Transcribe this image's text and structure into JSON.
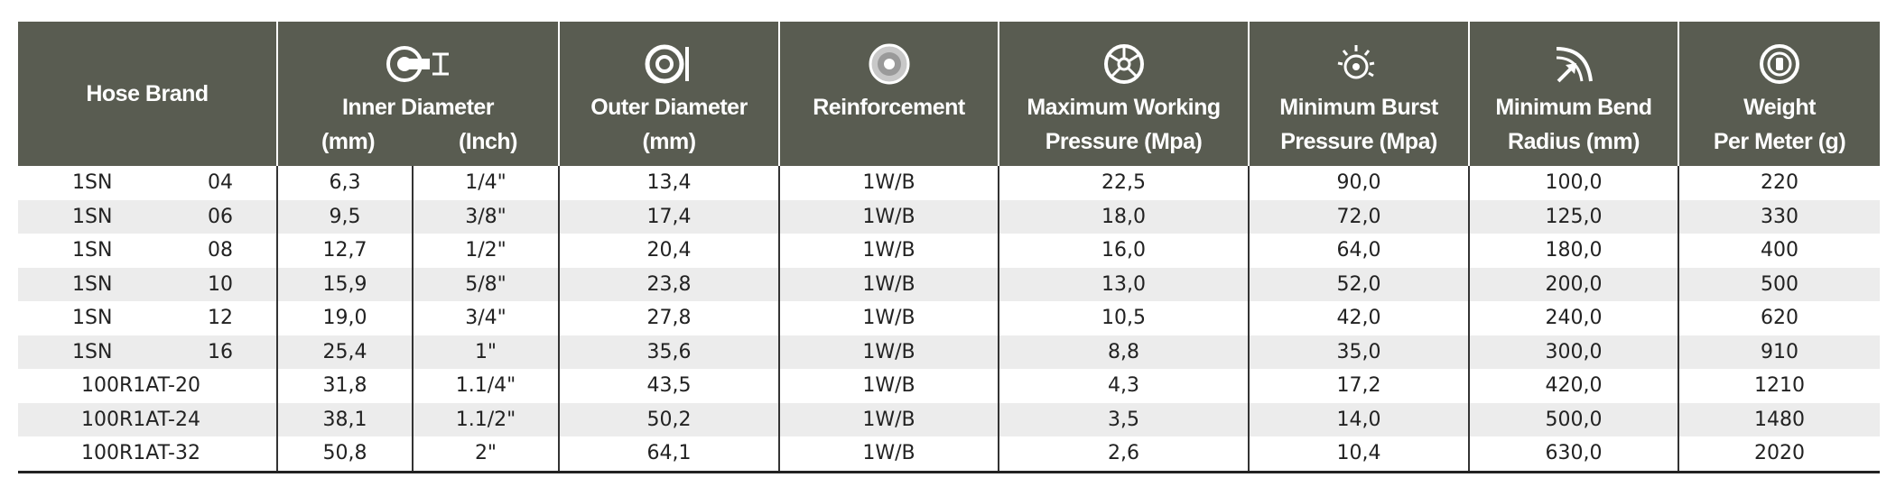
{
  "headers": {
    "hose_brand": "Hose Brand",
    "inner_diameter": "Inner Diameter",
    "inner_mm": "(mm)",
    "inner_inch": "(Inch)",
    "outer_diameter": "Outer Diameter",
    "outer_mm": "(mm)",
    "reinforcement": "Reinforcement",
    "mwp_line1": "Maximum Working",
    "mwp_line2": "Pressure (Mpa)",
    "mbp_line1": "Minimum Burst",
    "mbp_line2": "Pressure (Mpa)",
    "mbr_line1": "Minimum Bend",
    "mbr_line2": "Radius (mm)",
    "weight_line1": "Weight",
    "weight_line2": "Per Meter (g)"
  },
  "icons": [
    "inner-diameter-icon",
    "outer-diameter-icon",
    "reinforcement-icon",
    "working-pressure-icon",
    "burst-pressure-icon",
    "bend-radius-icon",
    "weight-icon"
  ],
  "colors": {
    "header_bg": "#595c51",
    "alt_row": "#ececec"
  },
  "rows": [
    {
      "brand": "1SN",
      "size": "04",
      "inner_mm": "6,3",
      "inner_inch": "1/4\"",
      "outer_mm": "13,4",
      "reinforcement": "1W/B",
      "mwp": "22,5",
      "mbp": "90,0",
      "mbr": "100,0",
      "weight": "220"
    },
    {
      "brand": "1SN",
      "size": "06",
      "inner_mm": "9,5",
      "inner_inch": "3/8\"",
      "outer_mm": "17,4",
      "reinforcement": "1W/B",
      "mwp": "18,0",
      "mbp": "72,0",
      "mbr": "125,0",
      "weight": "330"
    },
    {
      "brand": "1SN",
      "size": "08",
      "inner_mm": "12,7",
      "inner_inch": "1/2\"",
      "outer_mm": "20,4",
      "reinforcement": "1W/B",
      "mwp": "16,0",
      "mbp": "64,0",
      "mbr": "180,0",
      "weight": "400"
    },
    {
      "brand": "1SN",
      "size": "10",
      "inner_mm": "15,9",
      "inner_inch": "5/8\"",
      "outer_mm": "23,8",
      "reinforcement": "1W/B",
      "mwp": "13,0",
      "mbp": "52,0",
      "mbr": "200,0",
      "weight": "500"
    },
    {
      "brand": "1SN",
      "size": "12",
      "inner_mm": "19,0",
      "inner_inch": "3/4\"",
      "outer_mm": "27,8",
      "reinforcement": "1W/B",
      "mwp": "10,5",
      "mbp": "42,0",
      "mbr": "240,0",
      "weight": "620"
    },
    {
      "brand": "1SN",
      "size": "16",
      "inner_mm": "25,4",
      "inner_inch": "1\"",
      "outer_mm": "35,6",
      "reinforcement": "1W/B",
      "mwp": "8,8",
      "mbp": "35,0",
      "mbr": "300,0",
      "weight": "910"
    },
    {
      "brand": "100R1AT-20",
      "size": "",
      "inner_mm": "31,8",
      "inner_inch": "1.1/4\"",
      "outer_mm": "43,5",
      "reinforcement": "1W/B",
      "mwp": "4,3",
      "mbp": "17,2",
      "mbr": "420,0",
      "weight": "1210"
    },
    {
      "brand": "100R1AT-24",
      "size": "",
      "inner_mm": "38,1",
      "inner_inch": "1.1/2\"",
      "outer_mm": "50,2",
      "reinforcement": "1W/B",
      "mwp": "3,5",
      "mbp": "14,0",
      "mbr": "500,0",
      "weight": "1480"
    },
    {
      "brand": "100R1AT-32",
      "size": "",
      "inner_mm": "50,8",
      "inner_inch": "2\"",
      "outer_mm": "64,1",
      "reinforcement": "1W/B",
      "mwp": "2,6",
      "mbp": "10,4",
      "mbr": "630,0",
      "weight": "2020"
    }
  ]
}
